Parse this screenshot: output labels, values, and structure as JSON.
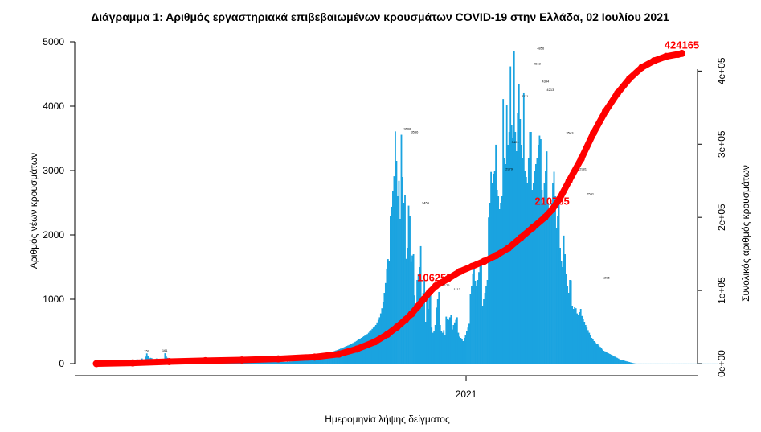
{
  "chart_data": {
    "type": "bar",
    "title": "Διάγραμμα 1: Αριθμός εργαστηριακά επιβεβαιωμένων κρουσμάτων COVID-19 στην Ελλάδα, 02 Ιουλίου 2021",
    "xlabel": "Ημερομηνία λήψης δείγματος",
    "ylabel_left": "Αριθμός νέων κρουσμάτων",
    "ylabel_right": "Συνολικός αριθμός κρουσμάτων",
    "x_tick_labels": [
      "2021"
    ],
    "x_tick_positions_day_index": [
      305
    ],
    "y_left_ticks": [
      "0",
      "1000",
      "2000",
      "3000",
      "4000",
      "5000"
    ],
    "y_left_range": [
      0,
      5000
    ],
    "y_right_ticks": [
      "0e+00",
      "1e+05",
      "2e+05",
      "3e+05",
      "4e+05"
    ],
    "y_right_range": [
      0,
      440000
    ],
    "grid": false,
    "bar_color": "#1aa3e0",
    "line_color": "#ff0000",
    "annotations": [
      {
        "text": "424165",
        "day_index": 483,
        "value": 424165
      },
      {
        "text": "210765",
        "day_index": 376,
        "value": 210765
      },
      {
        "text": "106255",
        "day_index": 279,
        "value": 106255
      }
    ],
    "peak_labels": [
      {
        "day_index": 41,
        "value": 159,
        "text": "159"
      },
      {
        "day_index": 56,
        "value": 161,
        "text": "161"
      },
      {
        "day_index": 256,
        "value": 3608,
        "text": "3608"
      },
      {
        "day_index": 262,
        "value": 3556,
        "text": "3556"
      },
      {
        "day_index": 271,
        "value": 2455,
        "text": "2455"
      },
      {
        "day_index": 288,
        "value": 1176,
        "text": "1176"
      },
      {
        "day_index": 297,
        "value": 1113,
        "text": "1113"
      },
      {
        "day_index": 340,
        "value": 2979,
        "text": "2979"
      },
      {
        "day_index": 345,
        "value": 3401,
        "text": "3401"
      },
      {
        "day_index": 353,
        "value": 4111,
        "text": "4111"
      },
      {
        "day_index": 363,
        "value": 4618,
        "text": "4618"
      },
      {
        "day_index": 366,
        "value": 4856,
        "text": "4856"
      },
      {
        "day_index": 370,
        "value": 4344,
        "text": "4344"
      },
      {
        "day_index": 374,
        "value": 4213,
        "text": "4213"
      },
      {
        "day_index": 390,
        "value": 3543,
        "text": "3543"
      },
      {
        "day_index": 401,
        "value": 2981,
        "text": "2981"
      },
      {
        "day_index": 407,
        "value": 2591,
        "text": "2591"
      },
      {
        "day_index": 420,
        "value": 1295,
        "text": "1295"
      }
    ],
    "series": [
      {
        "name": "",
        "type": "bar",
        "start_day_index": 0,
        "values": [
          14,
          10,
          6,
          4,
          4,
          6,
          5,
          8,
          4,
          4,
          8,
          6,
          10,
          6,
          6,
          8,
          6,
          10,
          8,
          9,
          10,
          12,
          12,
          10,
          15,
          24,
          22,
          27,
          27,
          52,
          27,
          39,
          58,
          66,
          55,
          30,
          23,
          80,
          42,
          41,
          109,
          159,
          120,
          80,
          90,
          85,
          70,
          60,
          70,
          80,
          60,
          50,
          40,
          70,
          65,
          60,
          161,
          110,
          90,
          77,
          60,
          50,
          55,
          40,
          38,
          41,
          35,
          37,
          30,
          32,
          22,
          28,
          20,
          25,
          20,
          18,
          15,
          16,
          14,
          12,
          15,
          19,
          10,
          12,
          20,
          21,
          24,
          28,
          22,
          24,
          23,
          26,
          27,
          30,
          31,
          40,
          37,
          43,
          42,
          41,
          38,
          32,
          28,
          25,
          24,
          22,
          20,
          18,
          16,
          14,
          12,
          15,
          18,
          17,
          20,
          22,
          25,
          28,
          26,
          30,
          32,
          28,
          30,
          35,
          38,
          40,
          45,
          43,
          48,
          52,
          55,
          60,
          63,
          65,
          68,
          60,
          58,
          55,
          52,
          50,
          48,
          45,
          42,
          40,
          38,
          36,
          35,
          34,
          33,
          32,
          31,
          30,
          29,
          28,
          27,
          26,
          25,
          30,
          28,
          32,
          34,
          36,
          38,
          40,
          42,
          44,
          47,
          50,
          53,
          56,
          60,
          63,
          67,
          70,
          74,
          78,
          82,
          86,
          90,
          95,
          100,
          105,
          110,
          116,
          122,
          128,
          134,
          140,
          146,
          152,
          158,
          164,
          170,
          176,
          183,
          190,
          197,
          204,
          211,
          218,
          226,
          234,
          242,
          250,
          258,
          266,
          274,
          282,
          290,
          300,
          310,
          320,
          330,
          340,
          352,
          364,
          376,
          388,
          400,
          412,
          424,
          436,
          448,
          460,
          480,
          500,
          520,
          540,
          560,
          580,
          600,
          640,
          680,
          720,
          780,
          860,
          960,
          1100,
          1252,
          1476,
          1624,
          1588,
          2290,
          2438,
          2680,
          2911,
          3608,
          3150,
          2600,
          2840,
          2250,
          3556,
          2900,
          2500,
          2620,
          1628,
          1800,
          2455,
          2300,
          1580,
          1680,
          1700,
          1060,
          900,
          1300,
          1400,
          1500,
          1826,
          950,
          1100,
          1300,
          650,
          1026,
          850,
          1158,
          1176,
          560,
          480,
          500,
          600,
          870,
          1000,
          1113,
          600,
          500,
          480,
          520,
          450,
          730,
          700,
          680,
          720,
          760,
          530,
          600,
          640,
          680,
          720,
          480,
          420,
          400,
          380,
          350,
          400,
          450,
          500,
          560,
          620,
          1086,
          1200,
          1401,
          1500,
          1288,
          1200,
          1300,
          1422,
          1562,
          1600,
          900,
          1000,
          1100,
          1200,
          1300,
          2272,
          2500,
          2979,
          2800,
          2950,
          3000,
          3401,
          2700,
          2600,
          2400,
          2500,
          2600,
          4111,
          3200,
          3100,
          4024,
          3400,
          3600,
          4618,
          3700,
          3500,
          4856,
          3600,
          3300,
          3900,
          4344,
          3800,
          3400,
          3200,
          4213,
          3000,
          2900,
          2800,
          3200,
          3600,
          3600,
          2700,
          2800,
          3000,
          3100,
          3200,
          3400,
          3543,
          3487,
          2700,
          2500,
          2800,
          3000,
          3298,
          2500,
          2400,
          2300,
          2500,
          2800,
          2981,
          2600,
          2100,
          2300,
          2591,
          1800,
          1600,
          1500,
          1989,
          1700,
          1400,
          1200,
          1100,
          1300,
          1295,
          900,
          850,
          880,
          860,
          780,
          760,
          800,
          850,
          740,
          700,
          650,
          600,
          560,
          520,
          480,
          450,
          400,
          380,
          350,
          330,
          310,
          300,
          280,
          260,
          240,
          220,
          200,
          190,
          180,
          170,
          160,
          150,
          140,
          130,
          120,
          110,
          100,
          90,
          80,
          70,
          60,
          55,
          50,
          45,
          40,
          35,
          30,
          25,
          20,
          15,
          10,
          5,
          3,
          1,
          1,
          1,
          1,
          1,
          1,
          1,
          1,
          1,
          1,
          1,
          1,
          1,
          1,
          1,
          1,
          1,
          1,
          1,
          1,
          1,
          1,
          1,
          1,
          1,
          1,
          1,
          1,
          1,
          1,
          1,
          1,
          1,
          1,
          1,
          1,
          1,
          1,
          1,
          1,
          1,
          1,
          1,
          1,
          1,
          1,
          1,
          1,
          1,
          1,
          1,
          1,
          1,
          1,
          1,
          1,
          1,
          1,
          1,
          1,
          1,
          1,
          1,
          1,
          1,
          1,
          1,
          1
        ]
      },
      {
        "name": "",
        "type": "line",
        "axis": "right",
        "x_day_index": [
          0,
          30,
          60,
          90,
          120,
          150,
          180,
          200,
          215,
          230,
          240,
          248,
          255,
          260,
          265,
          270,
          275,
          280,
          290,
          300,
          310,
          320,
          330,
          340,
          350,
          360,
          370,
          376,
          382,
          390,
          400,
          410,
          420,
          430,
          440,
          450,
          460,
          470,
          480,
          483
        ],
        "values": [
          0,
          1000,
          2800,
          4000,
          5000,
          6500,
          9000,
          13000,
          20000,
          30000,
          40000,
          50000,
          60000,
          68000,
          78000,
          88000,
          98000,
          106255,
          116000,
          126000,
          133000,
          140000,
          148000,
          158000,
          172000,
          186000,
          200000,
          210765,
          225000,
          250000,
          280000,
          315000,
          345000,
          370000,
          390000,
          405000,
          414000,
          420000,
          423000,
          424165
        ]
      }
    ],
    "n_days": 484
  }
}
